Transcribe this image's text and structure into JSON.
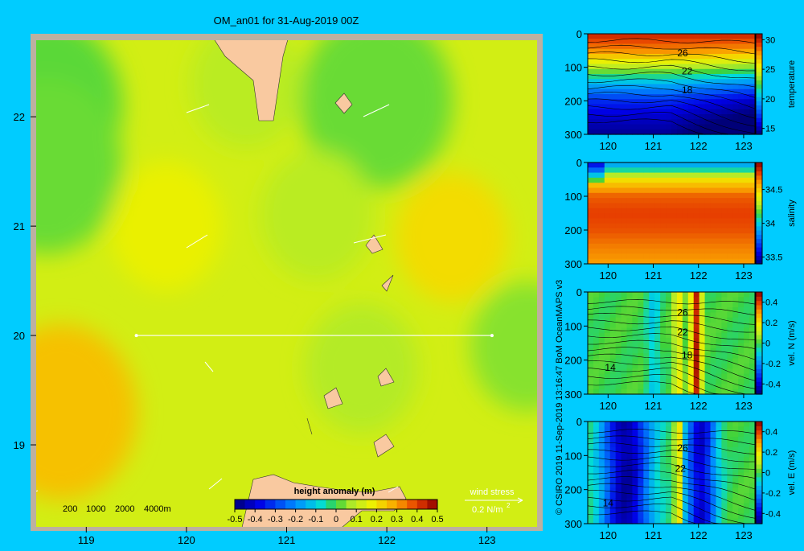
{
  "title": "OM_an01 for 31-Aug-2019 00Z",
  "credit": "© CSIRO 2019   11-Sep-2019 13:16:47 BoM OceanMAPS v3",
  "colors": {
    "background": "#00ccff",
    "map_frame": "#bdb0a0",
    "land": "#f9c9a0",
    "field_base": "#b6e63c",
    "section_line": "#ffffff"
  },
  "map": {
    "x_ticks": [
      119,
      120,
      121,
      122,
      123
    ],
    "y_ticks": [
      19,
      20,
      21,
      22
    ],
    "xlim": [
      118.5,
      123.5
    ],
    "ylim": [
      18.25,
      22.7
    ],
    "bathymetry_legend": [
      "200",
      "1000",
      "2000",
      "4000m"
    ],
    "section_line": {
      "lat": 20.0,
      "lon_start": 119.5,
      "lon_end": 123.05
    },
    "wind_stress_label": "wind stress",
    "wind_stress_scale": "0.2 N/m",
    "wind_stress_exp": "2"
  },
  "colorbar": {
    "label": "height anomaly (m)",
    "ticks": [
      "-0.5",
      "-0.4",
      "-0.3",
      "-0.2",
      "-0.1",
      "0",
      "0.1",
      "0.2",
      "0.3",
      "0.4",
      "0.5"
    ]
  },
  "chart_data": [
    {
      "type": "heatmap",
      "title": "OM_an01 for 31-Aug-2019 00Z",
      "variable": "height anomaly (m)",
      "xlim": [
        118.5,
        123.5
      ],
      "ylim": [
        18.25,
        22.7
      ],
      "value_range": [
        -0.5,
        0.5
      ],
      "x_ticks": [
        119,
        120,
        121,
        122,
        123
      ],
      "y_ticks": [
        19,
        20,
        21,
        22
      ],
      "base_value": 0.13,
      "features": [
        {
          "lon": 118.6,
          "lat": 22.1,
          "value": 0.02
        },
        {
          "lon": 118.6,
          "lat": 21.55,
          "value": 0.03
        },
        {
          "lon": 121.9,
          "lat": 22.15,
          "value": 0.03
        },
        {
          "lon": 120.6,
          "lat": 22.3,
          "value": 0.09
        },
        {
          "lon": 121.3,
          "lat": 21.1,
          "value": 0.09
        },
        {
          "lon": 122.65,
          "lat": 20.9,
          "value": 0.21
        },
        {
          "lon": 119.8,
          "lat": 21.0,
          "value": 0.17
        },
        {
          "lon": 118.75,
          "lat": 19.3,
          "value": 0.25
        },
        {
          "lon": 123.4,
          "lat": 19.9,
          "value": 0.05
        },
        {
          "lon": 121.75,
          "lat": 19.7,
          "value": 0.08
        }
      ]
    },
    {
      "type": "heatmap",
      "variable": "temperature",
      "xlabel": "",
      "ylabel": "",
      "xlim": [
        119.55,
        123.25
      ],
      "ylim": [
        300,
        0
      ],
      "x_ticks": [
        120,
        121,
        122,
        123
      ],
      "y_ticks": [
        0,
        100,
        200,
        300
      ],
      "colorbar_ticks": [
        15,
        20,
        25,
        30
      ],
      "colorbar_range": [
        14,
        31
      ],
      "contour_labels": [
        {
          "text": "26",
          "x": 121.65,
          "y": 58
        },
        {
          "text": "22",
          "x": 121.75,
          "y": 112
        },
        {
          "text": "18",
          "x": 121.75,
          "y": 168
        }
      ],
      "profile": {
        "depth": [
          0,
          50,
          100,
          150,
          200,
          250,
          300
        ],
        "value": [
          30,
          28,
          24,
          20,
          17,
          15.5,
          14.5
        ]
      }
    },
    {
      "type": "heatmap",
      "variable": "salinity",
      "xlabel": "",
      "ylabel": "",
      "xlim": [
        119.55,
        123.25
      ],
      "ylim": [
        300,
        0
      ],
      "x_ticks": [
        120,
        121,
        122,
        123
      ],
      "y_ticks": [
        0,
        100,
        200,
        300
      ],
      "colorbar_ticks": [
        33.5,
        34,
        34.5
      ],
      "colorbar_range": [
        33.4,
        34.9
      ],
      "profile": {
        "depth": [
          0,
          25,
          50,
          100,
          150,
          200,
          250,
          300
        ],
        "value": [
          33.85,
          34.1,
          34.45,
          34.7,
          34.75,
          34.72,
          34.65,
          34.6
        ]
      }
    },
    {
      "type": "heatmap",
      "variable": "vel. N (m/s)",
      "xlabel": "",
      "ylabel": "",
      "xlim": [
        119.55,
        123.25
      ],
      "ylim": [
        300,
        0
      ],
      "x_ticks": [
        120,
        121,
        122,
        123
      ],
      "y_ticks": [
        0,
        100,
        200,
        300
      ],
      "colorbar_ticks": [
        -0.4,
        -0.2,
        0,
        0.2,
        0.4
      ],
      "colorbar_range": [
        -0.5,
        0.5
      ],
      "contour_labels": [
        {
          "text": "26",
          "x": 121.65,
          "y": 60
        },
        {
          "text": "22",
          "x": 121.65,
          "y": 118
        },
        {
          "text": "18",
          "x": 121.75,
          "y": 185
        },
        {
          "text": "14",
          "x": 120.05,
          "y": 222
        }
      ],
      "bands": [
        {
          "center": 121.95,
          "width": 0.12,
          "value": 0.45
        },
        {
          "center": 121.55,
          "width": 0.1,
          "value": 0.18
        },
        {
          "center": 121.0,
          "width": 0.15,
          "value": -0.1
        }
      ]
    },
    {
      "type": "heatmap",
      "variable": "vel. E (m/s)",
      "xlabel": "",
      "ylabel": "",
      "xlim": [
        119.55,
        123.25
      ],
      "ylim": [
        300,
        0
      ],
      "x_ticks": [
        120,
        121,
        122,
        123
      ],
      "y_ticks": [
        0,
        100,
        200,
        300
      ],
      "colorbar_ticks": [
        -0.4,
        -0.2,
        0,
        0.2,
        0.4
      ],
      "colorbar_range": [
        -0.5,
        0.5
      ],
      "contour_labels": [
        {
          "text": "26",
          "x": 121.65,
          "y": 78
        },
        {
          "text": "22",
          "x": 121.6,
          "y": 138
        },
        {
          "text": "14",
          "x": 120.0,
          "y": 240
        }
      ],
      "bands": [
        {
          "center": 120.4,
          "width": 0.55,
          "value": -0.45
        },
        {
          "center": 121.55,
          "width": 0.08,
          "value": 0.3
        },
        {
          "center": 122.05,
          "width": 0.35,
          "value": -0.4
        }
      ]
    }
  ]
}
